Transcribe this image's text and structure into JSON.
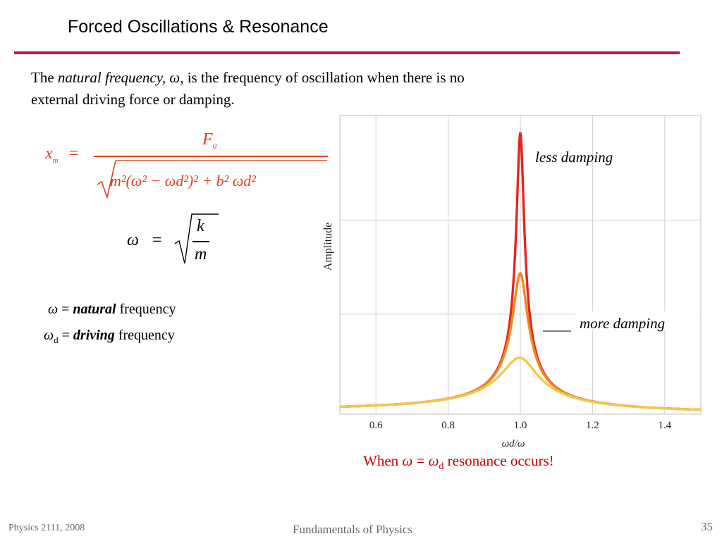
{
  "slide": {
    "title": "Forced Oscillations & Resonance",
    "intro_prefix": "The ",
    "intro_term": "natural frequency, ",
    "intro_symbol": "ω",
    "intro_suffix": ", is the frequency of oscillation when there is no external driving force or damping.",
    "formula1": {
      "lhs": "x",
      "lhs_sub": "m",
      "equals": "=",
      "numerator": "F",
      "numerator_sub": "0",
      "denominator": "m²(ω² − ωd²)² + b² ωd²"
    },
    "formula2": {
      "lhs": "ω",
      "equals": "=",
      "num": "k",
      "den": "m"
    },
    "definitions": [
      {
        "symbol": "ω",
        "eq": " = ",
        "term": "natural",
        "rest": " frequency"
      },
      {
        "symbol": "ω",
        "sub": "d",
        "eq": " = ",
        "term": "driving",
        "rest": " frequency"
      }
    ],
    "resonance_note": {
      "prefix": "When ",
      "a": "ω",
      "eq": " = ",
      "b": "ω",
      "b_sub": "d",
      "suffix": " resonance occurs!"
    },
    "footer": {
      "left": "Physics 2111, 2008",
      "center": "Fundamentals of Physics",
      "page": "35"
    }
  },
  "chart_data": {
    "type": "line",
    "xlabel": "ωd/ω",
    "ylabel": "Amplitude",
    "xlim": [
      0.5,
      1.5
    ],
    "x_ticks": [
      0.6,
      0.8,
      1.0,
      1.2,
      1.4
    ],
    "x_tick_labels": [
      "0.6",
      "0.8",
      "1.0",
      "1.2",
      "1.4"
    ],
    "grid": true,
    "series": [
      {
        "damping": 0.02,
        "color": "#e3261f",
        "x": [
          0.5,
          0.6,
          0.7,
          0.8,
          0.9,
          0.95,
          0.98,
          1.0,
          1.02,
          1.05,
          1.1,
          1.2,
          1.3,
          1.4,
          1.5
        ],
        "values": [
          1.33,
          1.56,
          1.96,
          2.78,
          5.26,
          9.99,
          23.0,
          48.0,
          24.5,
          9.74,
          4.76,
          2.27,
          1.45,
          1.04,
          0.8
        ]
      },
      {
        "damping": 0.04,
        "color": "#ef8a1e",
        "x": [
          0.5,
          0.6,
          0.7,
          0.8,
          0.9,
          0.95,
          0.98,
          1.0,
          1.02,
          1.05,
          1.1,
          1.2,
          1.3,
          1.4,
          1.5
        ],
        "values": [
          1.33,
          1.56,
          1.95,
          2.77,
          5.19,
          9.52,
          17.2,
          24.8,
          17.3,
          9.23,
          4.69,
          2.26,
          1.45,
          1.04,
          0.8
        ]
      },
      {
        "damping": 0.1,
        "color": "#f3c64e",
        "x": [
          0.5,
          0.6,
          0.7,
          0.8,
          0.9,
          0.95,
          0.98,
          1.0,
          1.02,
          1.05,
          1.1,
          1.2,
          1.3,
          1.4,
          1.5
        ],
        "values": [
          1.33,
          1.55,
          1.93,
          2.7,
          4.8,
          7.42,
          9.36,
          10.0,
          9.28,
          7.11,
          4.36,
          2.21,
          1.43,
          1.03,
          0.79
        ]
      }
    ],
    "annotations": [
      {
        "text": "less damping",
        "anchor_series": 0
      },
      {
        "text": "more damping",
        "anchor_series": 2
      }
    ]
  }
}
